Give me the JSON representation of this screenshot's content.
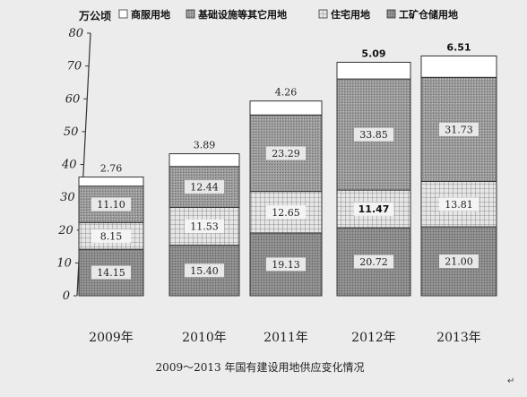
{
  "chart_data": {
    "type": "bar",
    "stacked": true,
    "title": "2009～2013 年国有建设用地供应变化情况",
    "ylabel": "万公顷",
    "ylim": [
      0,
      80
    ],
    "yticks": [
      "0",
      "10",
      "20",
      "30",
      "40",
      "50",
      "60",
      "70",
      "80"
    ],
    "categories": [
      "2009年",
      "2010年",
      "2011年",
      "2012年",
      "2013年"
    ],
    "series": [
      {
        "name": "工矿仓储用地",
        "values": [
          14.15,
          15.4,
          19.13,
          20.72,
          21.0
        ],
        "labels": [
          "14.15",
          "15.40",
          "19.13",
          "20.72",
          "21.00"
        ],
        "pattern": "dense-gray"
      },
      {
        "name": "住宅用地",
        "values": [
          8.15,
          11.53,
          12.65,
          11.47,
          13.81
        ],
        "labels": [
          "8.15",
          "11.53",
          "12.65",
          "11.47",
          "13.81"
        ],
        "pattern": "grid"
      },
      {
        "name": "基础设施等其它用地",
        "values": [
          11.1,
          12.44,
          23.29,
          33.85,
          31.73
        ],
        "labels": [
          "11.10",
          "12.44",
          "23.29",
          "33.85",
          "31.73"
        ],
        "pattern": "dotted-gray"
      },
      {
        "name": "商服用地",
        "values": [
          2.76,
          3.89,
          4.26,
          5.09,
          6.51
        ],
        "labels": [
          "2.76",
          "3.89",
          "4.26",
          "5.09",
          "6.51"
        ],
        "pattern": "white"
      }
    ],
    "legend": {
      "order": [
        "商服用地",
        "基础设施等其它用地",
        "住宅用地",
        "工矿仓储用地"
      ],
      "placement": "top"
    },
    "grid": false
  },
  "caption": "2009～2013 年国有建设用地供应变化情况",
  "return_mark": "↵"
}
